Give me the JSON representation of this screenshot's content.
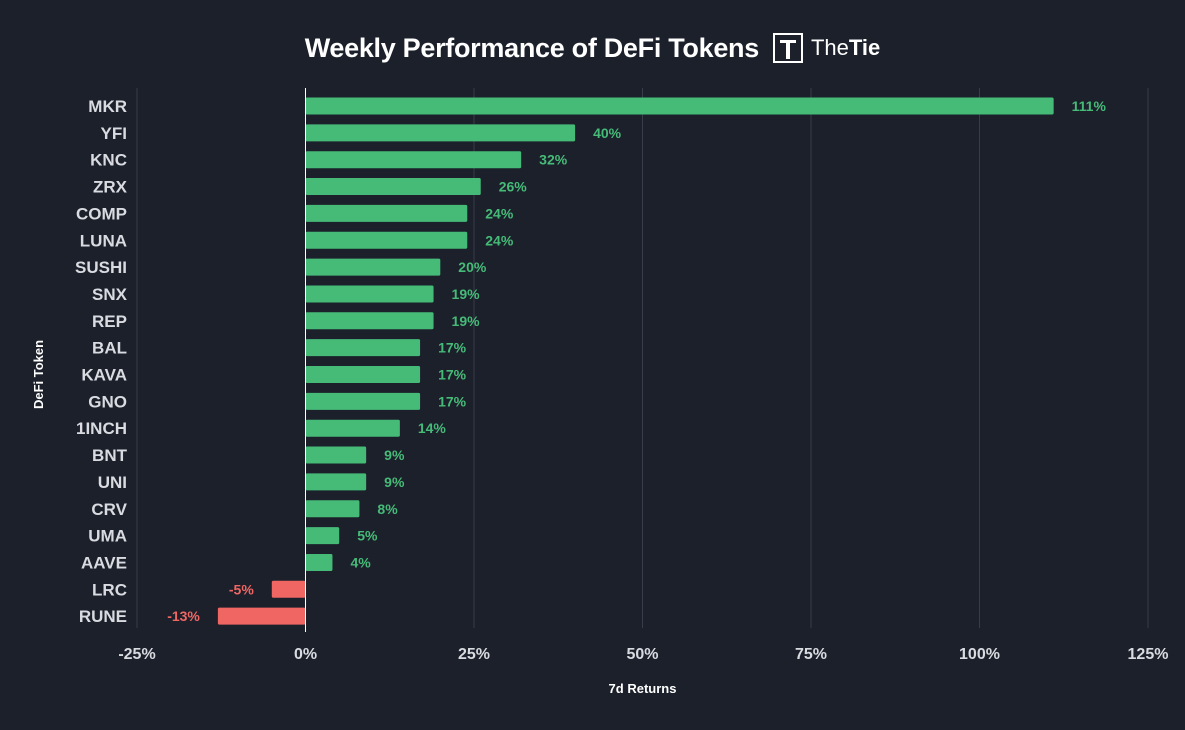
{
  "header": {
    "title": "Weekly Performance of DeFi Tokens",
    "logo_text_light": "The",
    "logo_text_bold": "Tie"
  },
  "colors": {
    "positive": "#46bb78",
    "negative": "#ef6663",
    "grid": "#373d4a",
    "zero_line": "#ffffff"
  },
  "chart_data": {
    "type": "bar",
    "orientation": "horizontal",
    "title": "Weekly Performance of DeFi Tokens",
    "xlabel": "7d Returns",
    "ylabel": "DeFi Token",
    "xlim": [
      -25,
      125
    ],
    "xticks": [
      -25,
      0,
      25,
      50,
      75,
      100,
      125
    ],
    "xtick_labels": [
      "-25%",
      "0%",
      "25%",
      "50%",
      "75%",
      "100%",
      "125%"
    ],
    "categories": [
      "MKR",
      "YFI",
      "KNC",
      "ZRX",
      "COMP",
      "LUNA",
      "SUSHI",
      "SNX",
      "REP",
      "BAL",
      "KAVA",
      "GNO",
      "1INCH",
      "BNT",
      "UNI",
      "CRV",
      "UMA",
      "AAVE",
      "LRC",
      "RUNE"
    ],
    "values": [
      111,
      40,
      32,
      26,
      24,
      24,
      20,
      19,
      19,
      17,
      17,
      17,
      14,
      9,
      9,
      8,
      5,
      4,
      -5,
      -13
    ],
    "value_labels": [
      "111%",
      "40%",
      "32%",
      "26%",
      "24%",
      "24%",
      "20%",
      "19%",
      "19%",
      "17%",
      "17%",
      "17%",
      "14%",
      "9%",
      "9%",
      "8%",
      "5%",
      "4%",
      "-5%",
      "-13%"
    ],
    "grid": true,
    "legend": "none"
  }
}
